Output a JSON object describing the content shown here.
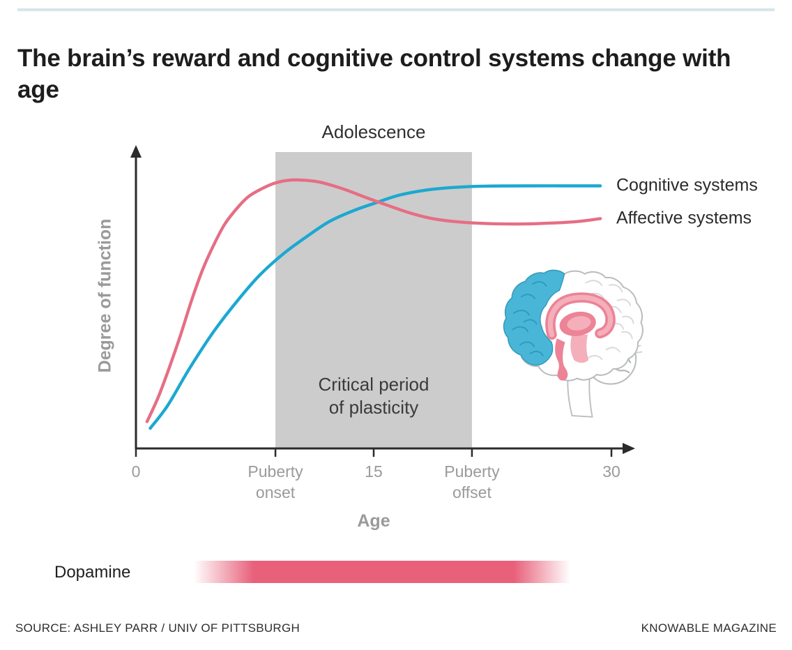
{
  "page": {
    "title": "The brain’s reward and cognitive control systems change with age",
    "source": "SOURCE: ASHLEY PARR / UNIV OF PITTSBURGH",
    "brand": "KNOWABLE MAGAZINE"
  },
  "colors": {
    "accent_rule": "#d6e5ea",
    "cognitive": "#1ca8d1",
    "affective": "#e66e84",
    "dopamine": "#e8607a",
    "shaded_region": "#cccccc",
    "axis": "#2b2b2b",
    "muted_label": "#9a9a9a",
    "brain_blue": "#49b6d8",
    "brain_blue_line": "#2e9cbe",
    "brain_pink": "#ec8396",
    "brain_pink_light": "#f4afba",
    "brain_outline": "#b9bcbd"
  },
  "chart_data": {
    "type": "line",
    "xlabel": "Age",
    "ylabel": "Degree of function",
    "x_range": [
      0,
      30
    ],
    "y_range": [
      0,
      1
    ],
    "grid": false,
    "legend_position": "right-of-line-ends",
    "x_ticks": [
      {
        "x": 0,
        "label": "0"
      },
      {
        "x": 8.8,
        "label": "Puberty\nonset"
      },
      {
        "x": 15,
        "label": "15"
      },
      {
        "x": 21.2,
        "label": "Puberty\noffset"
      },
      {
        "x": 30,
        "label": "30"
      }
    ],
    "shaded_region": {
      "label": "Adolescence",
      "inner_label": "Critical period\nof plasticity",
      "x0": 8.8,
      "x1": 21.2
    },
    "series": [
      {
        "name": "Cognitive systems",
        "color": "#1ca8d1",
        "points": [
          [
            0.9,
            0.075
          ],
          [
            2,
            0.16
          ],
          [
            3.4,
            0.3
          ],
          [
            4.9,
            0.435
          ],
          [
            6.4,
            0.55
          ],
          [
            7.8,
            0.645
          ],
          [
            9.3,
            0.725
          ],
          [
            10.8,
            0.79
          ],
          [
            12.2,
            0.845
          ],
          [
            13.7,
            0.885
          ],
          [
            15.2,
            0.916
          ],
          [
            16.6,
            0.943
          ],
          [
            18.3,
            0.962
          ],
          [
            20,
            0.972
          ],
          [
            22,
            0.977
          ],
          [
            25,
            0.978
          ],
          [
            27,
            0.978
          ],
          [
            29.3,
            0.978
          ]
        ]
      },
      {
        "name": "Affective systems",
        "color": "#e66e84",
        "points": [
          [
            0.7,
            0.1
          ],
          [
            1.4,
            0.19
          ],
          [
            2.1,
            0.3
          ],
          [
            2.8,
            0.42
          ],
          [
            3.5,
            0.55
          ],
          [
            4.2,
            0.665
          ],
          [
            4.9,
            0.757
          ],
          [
            5.6,
            0.835
          ],
          [
            6.4,
            0.896
          ],
          [
            7.1,
            0.938
          ],
          [
            7.9,
            0.966
          ],
          [
            8.7,
            0.987
          ],
          [
            9.5,
            0.998
          ],
          [
            10.2,
            1.0
          ],
          [
            11.5,
            0.993
          ],
          [
            13,
            0.968
          ],
          [
            14.4,
            0.937
          ],
          [
            15.9,
            0.905
          ],
          [
            17.4,
            0.875
          ],
          [
            18.8,
            0.855
          ],
          [
            20.5,
            0.843
          ],
          [
            22.5,
            0.837
          ],
          [
            24.5,
            0.836
          ],
          [
            26.5,
            0.84
          ],
          [
            28,
            0.846
          ],
          [
            29.3,
            0.856
          ]
        ]
      }
    ],
    "dopamine": {
      "label": "Dopamine",
      "x_start": 3.65,
      "x_end": 27.4
    }
  }
}
